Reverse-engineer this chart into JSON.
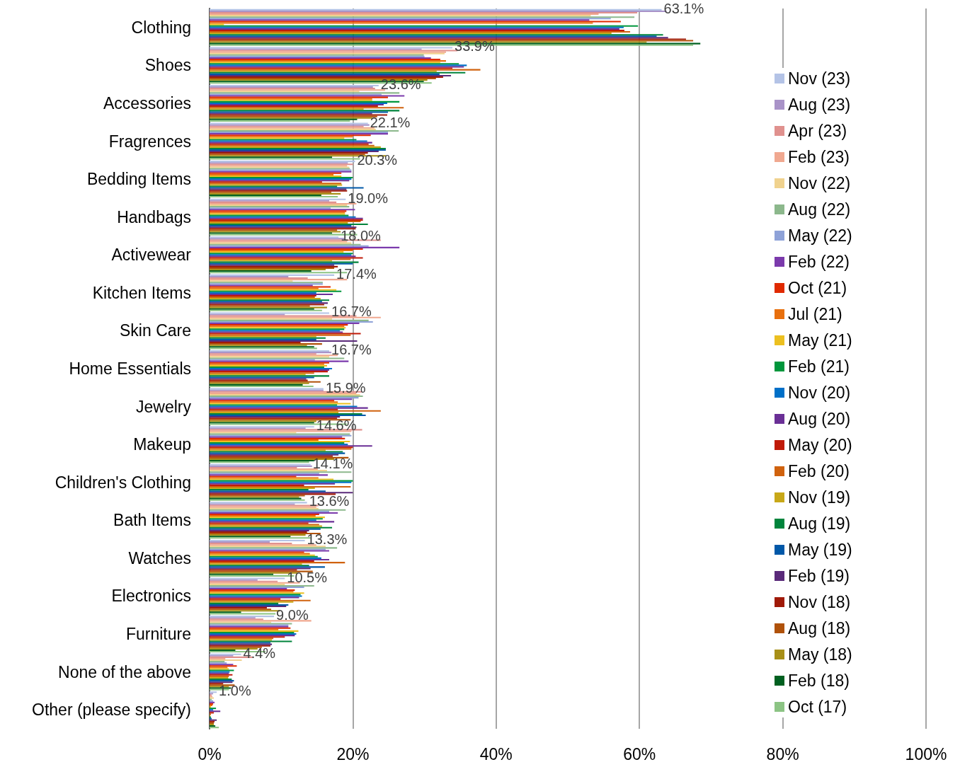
{
  "chart_data": {
    "type": "bar",
    "orientation": "horizontal",
    "categories": [
      "Clothing",
      "Shoes",
      "Accessories",
      "Fragrences",
      "Bedding Items",
      "Handbags",
      "Activewear",
      "Kitchen Items",
      "Skin Care",
      "Home Essentials",
      "Jewelry",
      "Makeup",
      "Children's Clothing",
      "Bath Items",
      "Watches",
      "Electronics",
      "Furniture",
      "None of the above",
      "Other (please specify)"
    ],
    "xlim": [
      0,
      100
    ],
    "xticks": [
      {
        "value": 0,
        "label": "0%"
      },
      {
        "value": 20,
        "label": "20%"
      },
      {
        "value": 40,
        "label": "40%"
      },
      {
        "value": 60,
        "label": "60%"
      },
      {
        "value": 80,
        "label": "80%"
      },
      {
        "value": 100,
        "label": "100%"
      }
    ],
    "grid": "x",
    "legend": "right",
    "series": [
      {
        "name": "Nov (23)",
        "color": "#b4c3e6",
        "values": [
          63.1,
          33.9,
          23.6,
          22.1,
          20.3,
          19.0,
          18.0,
          17.4,
          16.7,
          16.7,
          15.9,
          14.6,
          14.1,
          13.6,
          13.3,
          10.5,
          9.0,
          4.4,
          1.0
        ],
        "value_labels": [
          "63.1%",
          "33.9%",
          "23.6%",
          "22.1%",
          "20.3%",
          "19.0%",
          "18.0%",
          "17.4%",
          "16.7%",
          "16.7%",
          "15.9%",
          "14.6%",
          "14.1%",
          "13.6%",
          "13.3%",
          "10.5%",
          "9.0%",
          "4.4%",
          "1.0%"
        ]
      },
      {
        "name": "Aug (23)",
        "color": "#a993c8",
        "values": [
          63.8,
          29.6,
          22.8,
          22.3,
          19.3,
          16.7,
          18.8,
          11.0,
          10.5,
          17.0,
          15.9,
          13.4,
          14.3,
          11.9,
          8.4,
          6.7,
          6.4,
          3.3,
          0.5
        ]
      },
      {
        "name": "Apr (23)",
        "color": "#e0918e",
        "values": [
          59.7,
          34.6,
          23.1,
          21.5,
          20.0,
          17.7,
          23.9,
          13.7,
          20.5,
          14.9,
          21.3,
          21.3,
          12.2,
          15.2,
          11.5,
          9.5,
          7.5,
          6.0,
          0.3
        ]
      },
      {
        "name": "Feb (23)",
        "color": "#f0a890",
        "values": [
          54.3,
          33.0,
          24.5,
          23.0,
          19.2,
          20.5,
          19.2,
          19.2,
          23.9,
          17.9,
          20.5,
          19.8,
          15.1,
          14.9,
          14.9,
          12.6,
          14.2,
          2.2,
          0.4
        ]
      },
      {
        "name": "Nov (22)",
        "color": "#f0d28e",
        "values": [
          53.2,
          32.8,
          20.9,
          23.2,
          19.5,
          19.2,
          19.8,
          11.6,
          17.1,
          16.7,
          21.0,
          12.1,
          16.4,
          15.2,
          16.2,
          10.5,
          8.6,
          4.5,
          0.6
        ]
      },
      {
        "name": "Aug (22)",
        "color": "#8cb88c",
        "values": [
          59.3,
          29.9,
          26.5,
          26.4,
          19.6,
          19.5,
          21.1,
          15.8,
          22.2,
          18.8,
          21.4,
          19.6,
          19.8,
          19.0,
          17.8,
          14.6,
          11.5,
          2.1,
          0.3
        ]
      },
      {
        "name": "May (22)",
        "color": "#8ea2d8",
        "values": [
          56.0,
          30.0,
          24.0,
          24.9,
          19.8,
          16.9,
          22.2,
          15.8,
          22.8,
          14.7,
          20.8,
          19.8,
          15.3,
          16.7,
          16.2,
          13.2,
          11.0,
          2.4,
          0.5
        ]
      },
      {
        "name": "Feb (22)",
        "color": "#7b3aac",
        "values": [
          53.0,
          30.9,
          27.2,
          24.9,
          19.8,
          20.3,
          26.5,
          14.4,
          20.9,
          19.4,
          19.9,
          18.5,
          16.5,
          17.9,
          16.7,
          10.8,
          11.0,
          3.3,
          0.7
        ]
      },
      {
        "name": "Oct (21)",
        "color": "#e02a00",
        "values": [
          57.4,
          32.2,
          24.9,
          22.5,
          18.4,
          19.1,
          21.4,
          16.9,
          19.3,
          16.7,
          17.4,
          18.9,
          12.1,
          15.3,
          13.2,
          11.9,
          11.3,
          3.8,
          0.5
        ]
      },
      {
        "name": "Jul (21)",
        "color": "#e8700e",
        "values": [
          53.5,
          33.0,
          22.7,
          20.0,
          17.3,
          18.9,
          20.0,
          15.2,
          18.8,
          16.0,
          17.9,
          15.2,
          15.2,
          14.8,
          14.0,
          11.7,
          9.6,
          2.5,
          0.4
        ]
      },
      {
        "name": "May (21)",
        "color": "#ecc020",
        "values": [
          2.0,
          32.2,
          22.7,
          18.8,
          18.4,
          18.9,
          18.7,
          17.7,
          19.0,
          16.4,
          19.7,
          19.6,
          17.3,
          16.1,
          14.7,
          13.2,
          12.4,
          2.7,
          0.2
        ]
      },
      {
        "name": "Feb (21)",
        "color": "#00963c",
        "values": [
          59.8,
          34.8,
          26.5,
          20.5,
          20.0,
          19.4,
          20.0,
          18.4,
          18.8,
          16.0,
          17.8,
          18.8,
          20.0,
          15.8,
          15.1,
          12.7,
          11.8,
          3.4,
          0.9
        ]
      },
      {
        "name": "Nov (20)",
        "color": "#0070c8",
        "values": [
          57.8,
          35.9,
          24.8,
          22.0,
          19.8,
          20.4,
          19.8,
          14.9,
          18.2,
          17.1,
          20.6,
          19.3,
          19.8,
          14.9,
          15.6,
          12.9,
          12.1,
          2.8,
          0.5
        ]
      },
      {
        "name": "Aug (20)",
        "color": "#6a2f96",
        "values": [
          57.2,
          35.5,
          24.3,
          22.7,
          19.5,
          21.4,
          20.4,
          17.2,
          18.6,
          16.7,
          22.1,
          22.7,
          17.5,
          17.4,
          16.7,
          12.5,
          11.9,
          2.7,
          1.5
        ]
      },
      {
        "name": "May (20)",
        "color": "#c01a08",
        "values": [
          57.9,
          33.9,
          23.5,
          22.2,
          15.7,
          21.4,
          21.4,
          14.9,
          21.1,
          16.5,
          17.9,
          20.0,
          13.2,
          13.8,
          14.6,
          9.9,
          10.5,
          3.2,
          0.6
        ]
      },
      {
        "name": "Feb (20)",
        "color": "#d0620e",
        "values": [
          58.7,
          37.8,
          27.1,
          23.0,
          18.4,
          21.1,
          19.7,
          14.7,
          19.7,
          14.6,
          23.9,
          19.8,
          19.7,
          15.3,
          18.9,
          14.1,
          8.9,
          2.7,
          0.2
        ]
      },
      {
        "name": "Nov (19)",
        "color": "#c8a818",
        "values": [
          56.1,
          31.7,
          21.5,
          23.9,
          18.5,
          19.3,
          17.1,
          15.5,
          14.9,
          13.4,
          18.0,
          16.2,
          14.7,
          15.7,
          12.9,
          11.7,
          8.7,
          2.6,
          0.1
        ]
      },
      {
        "name": "Aug (19)",
        "color": "#00843c",
        "values": [
          63.3,
          35.7,
          26.5,
          24.6,
          17.8,
          22.1,
          20.8,
          16.7,
          16.2,
          16.7,
          21.3,
          18.6,
          13.8,
          17.1,
          13.9,
          9.6,
          11.5,
          3.1,
          0.2
        ]
      },
      {
        "name": "May (19)",
        "color": "#0058a8",
        "values": [
          62.4,
          32.1,
          24.9,
          24.6,
          21.5,
          19.8,
          20.0,
          15.7,
          14.9,
          14.6,
          21.8,
          18.9,
          16.2,
          15.5,
          16.1,
          11.0,
          8.5,
          3.4,
          0.3
        ]
      },
      {
        "name": "Feb (19)",
        "color": "#5a2a7a",
        "values": [
          64.0,
          33.7,
          22.7,
          23.6,
          19.1,
          20.5,
          17.4,
          16.5,
          20.6,
          13.5,
          18.2,
          18.0,
          20.0,
          13.9,
          14.1,
          10.7,
          8.7,
          3.2,
          1.0
        ]
      },
      {
        "name": "Nov (18)",
        "color": "#a01a08",
        "values": [
          66.5,
          32.6,
          24.8,
          22.1,
          19.2,
          20.4,
          17.9,
          16.0,
          12.7,
          13.7,
          17.8,
          17.2,
          17.6,
          13.6,
          12.2,
          8.0,
          8.5,
          1.9,
          0.7
        ]
      },
      {
        "name": "Aug (18)",
        "color": "#b0520a",
        "values": [
          67.5,
          31.6,
          23.4,
          21.7,
          17.0,
          17.8,
          17.4,
          14.0,
          15.7,
          15.5,
          19.7,
          19.4,
          13.3,
          15.5,
          14.4,
          8.6,
          7.3,
          3.5,
          0.6
        ]
      },
      {
        "name": "May (18)",
        "color": "#a89018",
        "values": [
          61.0,
          30.4,
          22.7,
          24.6,
          18.3,
          18.3,
          16.2,
          16.4,
          13.6,
          13.9,
          14.9,
          17.4,
          12.5,
          13.4,
          12.3,
          9.8,
          6.7,
          2.7,
          0.6
        ]
      },
      {
        "name": "Feb (18)",
        "color": "#006020",
        "values": [
          68.5,
          29.9,
          20.6,
          17.1,
          15.6,
          17.1,
          14.2,
          14.6,
          14.6,
          13.0,
          14.6,
          14.6,
          12.8,
          11.3,
          8.9,
          4.4,
          3.6,
          3.0,
          0.8
        ]
      },
      {
        "name": "Oct (17)",
        "color": "#8cc484",
        "values": [
          67.5,
          31.0,
          19.6,
          21.0,
          17.9,
          20.6,
          19.2,
          15.7,
          15.0,
          14.5,
          19.2,
          13.9,
          13.3,
          14.1,
          11.8,
          9.2,
          7.8,
          2.7,
          1.3
        ]
      }
    ]
  }
}
